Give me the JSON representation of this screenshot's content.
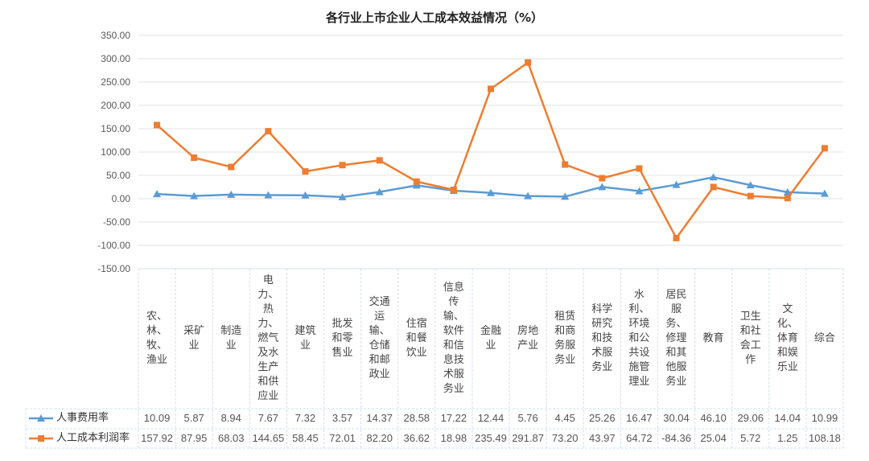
{
  "chart_data": {
    "type": "line",
    "title": "各行业上市企业人工成本效益情况（%）",
    "categories": [
      "农、林、牧、渔业",
      "采矿业",
      "制造业",
      "电力、热力、燃气及水生产和供应业",
      "建筑业",
      "批发和零售业",
      "交通运输、仓储和邮政业",
      "住宿和餐饮业",
      "信息传输、软件和信息技术服务业",
      "金融业",
      "房地产业",
      "租赁和商务服务业",
      "科学研究和技术服务业",
      "水利、环境和公共设施管理业",
      "居民服务、修理和其他服务业",
      "教育",
      "卫生和社会工作",
      "文化、体育和娱乐业",
      "综合"
    ],
    "series": [
      {
        "name": "人事费用率",
        "color": "#5B9BD5",
        "marker": "triangle",
        "values": [
          10.09,
          5.87,
          8.94,
          7.67,
          7.32,
          3.57,
          14.37,
          28.58,
          17.22,
          12.44,
          5.76,
          4.45,
          25.26,
          16.47,
          30.04,
          46.1,
          29.06,
          14.04,
          10.99
        ],
        "labels": [
          "10.09",
          "5.87",
          "8.94",
          "7.67",
          "7.32",
          "3.57",
          "14.37",
          "28.58",
          "17.22",
          "12.44",
          "5.76",
          "4.45",
          "25.26",
          "16.47",
          "30.04",
          "46.10",
          "29.06",
          "14.04",
          "10.99"
        ]
      },
      {
        "name": "人工成本利润率",
        "color": "#ED7D31",
        "marker": "square",
        "values": [
          157.92,
          87.95,
          68.03,
          144.65,
          58.45,
          72.01,
          82.2,
          36.62,
          18.98,
          235.49,
          291.87,
          73.2,
          43.97,
          64.72,
          -84.36,
          25.04,
          5.72,
          1.25,
          108.18
        ],
        "labels": [
          "157.92",
          "87.95",
          "68.03",
          "144.65",
          "58.45",
          "72.01",
          "82.20",
          "36.62",
          "18.98",
          "235.49",
          "291.87",
          "73.20",
          "43.97",
          "64.72",
          "-84.36",
          "25.04",
          "5.72",
          "1.25",
          "108.18"
        ]
      }
    ],
    "ylim": [
      -150,
      350
    ],
    "yticks": [
      "350.00",
      "300.00",
      "250.00",
      "200.00",
      "150.00",
      "100.00",
      "50.00",
      "0.00",
      "-50.00",
      "-100.00",
      "-150.00"
    ],
    "grid": true,
    "legend": "data-table-left"
  }
}
